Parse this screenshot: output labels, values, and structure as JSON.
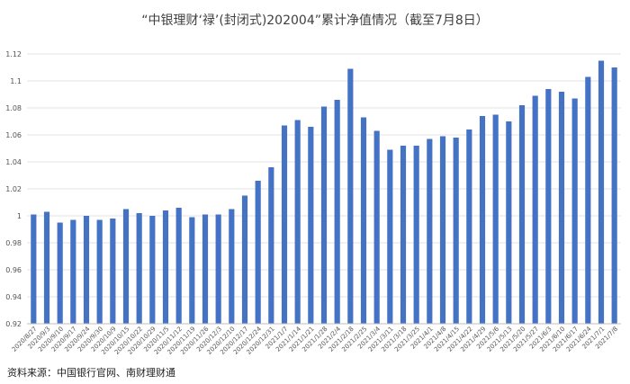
{
  "chart_data": {
    "type": "bar",
    "title": "“中银理财‘禄’(封闭式)202004”累计净值情况（截至7月8日）",
    "source": "资料来源：中国银行官网、南财理财通",
    "ylim": [
      0.92,
      1.12
    ],
    "yticks": [
      "0.92",
      "0.94",
      "0.96",
      "0.98",
      "1",
      "1.02",
      "1.04",
      "1.06",
      "1.08",
      "1.1",
      "1.12"
    ],
    "bar_color": "#4472C4",
    "grid": true,
    "categories": [
      "2020/8/27",
      "2020/9/3",
      "2020/9/10",
      "2020/9/17",
      "2020/9/24",
      "2020/9/30",
      "2020/10/9",
      "2020/10/15",
      "2020/10/22",
      "2020/10/29",
      "2020/11/5",
      "2020/11/12",
      "2020/11/19",
      "2020/11/26",
      "2020/12/3",
      "2020/12/10",
      "2020/12/17",
      "2020/12/24",
      "2020/12/31",
      "2021/1/7",
      "2021/1/14",
      "2021/1/21",
      "2021/1/28",
      "2021/2/4",
      "2021/2/18",
      "2021/2/25",
      "2021/3/4",
      "2021/3/11",
      "2021/3/18",
      "2021/3/25",
      "2021/4/1",
      "2021/4/8",
      "2021/4/15",
      "2021/4/22",
      "2021/4/29",
      "2021/5/6",
      "2021/5/13",
      "2021/5/20",
      "2021/5/27",
      "2021/6/3",
      "2021/6/10",
      "2021/6/17",
      "2021/6/24",
      "2021/7/1",
      "2021/7/8"
    ],
    "values": [
      1.001,
      1.003,
      0.995,
      0.997,
      1.0,
      0.997,
      0.998,
      1.005,
      1.002,
      1.0,
      1.004,
      1.006,
      0.999,
      1.001,
      1.001,
      1.005,
      1.015,
      1.026,
      1.036,
      1.067,
      1.071,
      1.066,
      1.081,
      1.086,
      1.109,
      1.073,
      1.063,
      1.049,
      1.052,
      1.052,
      1.057,
      1.059,
      1.058,
      1.064,
      1.074,
      1.075,
      1.07,
      1.082,
      1.089,
      1.094,
      1.092,
      1.087,
      1.103,
      1.115,
      1.11
    ],
    "xlabels": [
      "2020/8/27",
      "2020/9/3",
      "2020/9/10",
      "2020/9/17",
      "2020/9/24",
      "2020/9/30",
      "2020/10/9",
      "2020/10/15",
      "2020/10/22",
      "2020/10/29",
      "2020/11/5",
      "2020/11/12",
      "2020/11/19",
      "2020/11/26",
      "2020/12/3",
      "2020/12/10",
      "2020/12/17",
      "2020/12/24",
      "2020/12/31",
      "2021/1/7",
      "2021/1/14",
      "2021/1/21",
      "2021/1/28",
      "2021/2/4",
      "2021/2/18",
      "2021/2/25",
      "2021/3/4",
      "2021/3/11",
      "2021/3/18",
      "2021/3/25",
      "2021/4/1",
      "2021/4/8",
      "2021/4/15",
      "2021/4/22",
      "2021/4/29",
      "2021/5/6",
      "2021/5/13",
      "2021/5/20",
      "2021/5/27",
      "2021/6/3",
      "2021/6/10",
      "2021/6/17",
      "2021/6/24",
      "2021/7/1",
      "2021/7/8"
    ]
  }
}
